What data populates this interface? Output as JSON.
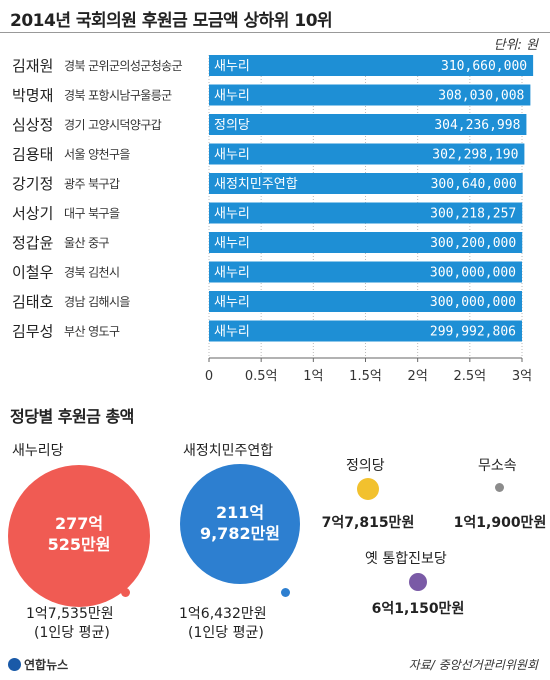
{
  "header": {
    "title": "2014년 국회의원 후원금 모금액 상하위 10위",
    "unit": "단위: 원"
  },
  "chart_data": {
    "type": "bar",
    "orientation": "horizontal",
    "categories": [
      "김재원",
      "박명재",
      "심상정",
      "김용태",
      "강기정",
      "서상기",
      "정갑윤",
      "이철우",
      "김태호",
      "김무성"
    ],
    "districts": [
      "경북 군위군의성군청송군",
      "경북 포항시남구울릉군",
      "경기 고양시덕양구갑",
      "서울 양천구을",
      "광주 북구갑",
      "대구 북구을",
      "울산 중구",
      "경북 김천시",
      "경남 김해시을",
      "부산 영도구"
    ],
    "parties": [
      "새누리",
      "새누리",
      "정의당",
      "새누리",
      "새정치민주연합",
      "새누리",
      "새누리",
      "새누리",
      "새누리",
      "새누리"
    ],
    "values": [
      310660000,
      308030008,
      304236998,
      302298190,
      300640000,
      300218257,
      300200000,
      300000000,
      300000000,
      299992806
    ],
    "value_labels": [
      "310,660,000",
      "308,030,008",
      "304,236,998",
      "302,298,190",
      "300,640,000",
      "300,218,257",
      "300,200,000",
      "300,000,000",
      "300,000,000",
      "299,992,806"
    ],
    "xlim": [
      0,
      300000000
    ],
    "xticks": [
      "0",
      "0.5억",
      "1억",
      "1.5억",
      "2억",
      "2.5억",
      "3억"
    ],
    "bar_color": "#1e8fd5",
    "grid": false
  },
  "parties_section": {
    "title": "정당별 후원금 총액",
    "items": [
      {
        "name": "새누리당",
        "total": "277억\n525만원",
        "total_line1": "277억",
        "total_line2": "525만원",
        "avg_line1": "1억7,535만원",
        "avg_line2": "(1인당 평균)",
        "color": "#f05b53",
        "dot": "#f05b53"
      },
      {
        "name": "새정치민주연합",
        "total_line1": "211억",
        "total_line2": "9,782만원",
        "avg_line1": "1억6,432만원",
        "avg_line2": "(1인당 평균)",
        "color": "#2d7fd0",
        "dot": "#2d7fd0"
      },
      {
        "name": "정의당",
        "total": "7억7,815만원",
        "color": "#f2c12e"
      },
      {
        "name": "무소속",
        "total": "1억1,900만원",
        "color": "#8c8c8c"
      },
      {
        "name": "옛 통합진보당",
        "total": "6억1,150만원",
        "color": "#7a5aa6"
      }
    ]
  },
  "footer": {
    "logo": "연합뉴스",
    "source": "자료/ 중앙선거관리위원회"
  }
}
